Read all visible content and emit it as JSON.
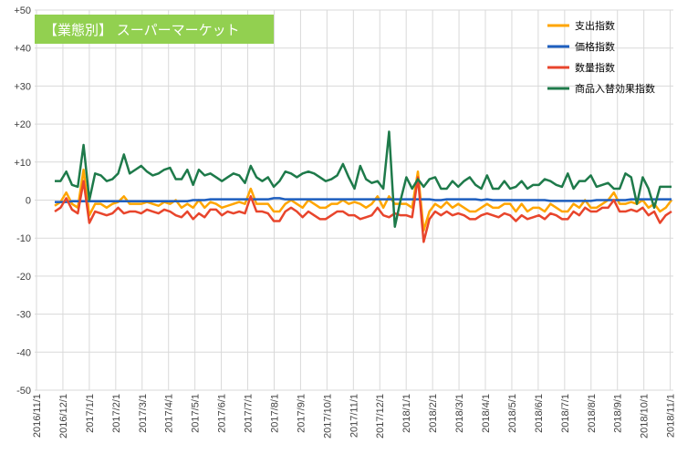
{
  "chart_data": {
    "type": "line",
    "title": "【業態別】 スーパーマーケット",
    "title_bg_color": "#92d050",
    "ylim": [
      -50,
      50
    ],
    "y_ticks": [
      50,
      40,
      30,
      20,
      10,
      0,
      -10,
      -20,
      -30,
      -40,
      -50
    ],
    "y_tick_labels": [
      "+50",
      "+40",
      "+30",
      "+20",
      "+10",
      "0",
      "-10",
      "-20",
      "-30",
      "-40",
      "-50"
    ],
    "grid": true,
    "legend_position": "top-right",
    "x_tick_labels": [
      "2016/11/1",
      "2016/12/1",
      "2017/1/1",
      "2017/2/1",
      "2017/3/1",
      "2017/4/1",
      "2017/5/1",
      "2017/6/1",
      "2017/7/1",
      "2017/8/1",
      "2017/9/1",
      "2017/10/1",
      "2017/11/1",
      "2017/12/1",
      "2018/1/1",
      "2018/2/1",
      "2018/3/1",
      "2018/4/1",
      "2018/5/1",
      "2018/6/1",
      "2018/7/1",
      "2018/8/1",
      "2018/9/1",
      "2018/10/1",
      "2018/11/1"
    ],
    "x_count": 108,
    "series": [
      {
        "name": "支出指数",
        "color": "#ffa500",
        "values": [
          -1.5,
          -0.5,
          2,
          -1,
          -2,
          8,
          -4,
          -1,
          -1,
          -2,
          -1,
          -0.5,
          1,
          -1,
          -1,
          -1,
          -0.5,
          -1,
          -1.5,
          -0.5,
          -1,
          0,
          -2,
          -1,
          -2,
          0,
          -2,
          -0.5,
          -1,
          -2,
          -1.5,
          -1,
          -0.5,
          -1,
          3,
          -1,
          -1,
          -1,
          -3,
          -3,
          -1,
          0,
          -1,
          -2,
          0,
          -1,
          -2,
          -2,
          -1,
          -1,
          0,
          -1,
          -0.5,
          -1,
          -2,
          -1,
          1,
          -2,
          1,
          -1,
          -1,
          -1,
          -2,
          7.5,
          -8,
          -3,
          -1,
          -2,
          -0.5,
          -2,
          -1,
          -2,
          -3,
          -3,
          -2,
          -1,
          -2,
          -2,
          -1,
          -1,
          -3,
          -1,
          -3,
          -2,
          -2,
          -3,
          -1,
          -2,
          -3,
          -3,
          -1,
          -2,
          0,
          -2,
          -2,
          -1,
          0,
          2,
          -1,
          -1,
          -0.5,
          -1,
          0,
          -2,
          -1,
          -3,
          -2,
          0
        ]
      },
      {
        "name": "価格指数",
        "color": "#1f5fbf",
        "values": [
          -0.5,
          -0.5,
          -0.5,
          -0.3,
          -0.3,
          -0.3,
          -0.3,
          -0.3,
          -0.3,
          -0.3,
          -0.3,
          -0.3,
          -0.3,
          -0.3,
          -0.3,
          -0.3,
          -0.3,
          -0.3,
          -0.3,
          -0.3,
          -0.3,
          -0.3,
          -0.3,
          -0.3,
          0,
          0,
          0,
          0.2,
          0.2,
          0.2,
          0.2,
          0.2,
          0.2,
          0.2,
          0.2,
          0.2,
          0.2,
          0.2,
          0.5,
          0.5,
          0.2,
          0.2,
          0.2,
          0.2,
          0.2,
          0.2,
          0.2,
          0.2,
          0.2,
          0.2,
          0.2,
          0.2,
          0.2,
          0.2,
          0.2,
          0.2,
          0.2,
          0.2,
          0.2,
          0.2,
          0.2,
          0.2,
          0.2,
          0.2,
          0.2,
          0.2,
          0,
          0,
          0.2,
          0.2,
          0.2,
          0.2,
          0.2,
          0.2,
          0,
          0.2,
          0,
          0,
          0,
          0,
          0,
          0,
          0,
          0,
          0,
          0,
          -0.2,
          -0.2,
          -0.2,
          -0.2,
          -0.2,
          -0.2,
          -0.2,
          -0.2,
          0,
          0,
          0,
          0,
          0,
          0,
          0.2,
          0.2,
          0.2,
          0.2,
          0.2,
          0.2,
          0.2,
          0.2
        ]
      },
      {
        "name": "数量指数",
        "color": "#e8452c",
        "values": [
          -3,
          -2,
          0.5,
          -2.5,
          -3.5,
          5,
          -6,
          -3,
          -3.5,
          -4,
          -3.5,
          -2,
          -3.5,
          -3,
          -3,
          -3.5,
          -2.5,
          -3,
          -3.5,
          -2.5,
          -3,
          -4,
          -4.5,
          -3,
          -5,
          -3.5,
          -4.5,
          -2.5,
          -2.5,
          -4,
          -3,
          -3.5,
          -3,
          -3.5,
          1,
          -3,
          -3,
          -3.5,
          -5.5,
          -5.5,
          -3,
          -2,
          -3,
          -4.5,
          -3,
          -4,
          -5,
          -5,
          -4,
          -3,
          -3,
          -4,
          -4,
          -5,
          -4.5,
          -4,
          -2,
          -4,
          -4.5,
          -3.5,
          -4,
          -4,
          -4.5,
          6,
          -11,
          -5,
          -3,
          -4,
          -3,
          -4,
          -3.5,
          -4,
          -5,
          -5,
          -4,
          -3.5,
          -4,
          -4.5,
          -3.5,
          -4,
          -5.5,
          -4,
          -5,
          -4.5,
          -4,
          -5,
          -3.5,
          -4,
          -5,
          -5,
          -3,
          -4,
          -2,
          -3,
          -3,
          -2,
          -2,
          0,
          -3,
          -3,
          -2.5,
          -3,
          -2,
          -4,
          -3,
          -6,
          -4,
          -3
        ]
      },
      {
        "name": "商品入替効果指数",
        "color": "#1e7a4a",
        "values": [
          5,
          5,
          7.5,
          4,
          3.5,
          14.5,
          0,
          7,
          6.5,
          5,
          5.5,
          7,
          12,
          7,
          8,
          9,
          7.5,
          6.5,
          7,
          8,
          8.5,
          5.5,
          5.5,
          8,
          4,
          8,
          6.5,
          7,
          6,
          5,
          6,
          7,
          6.5,
          4.5,
          9,
          6,
          5,
          6,
          3.5,
          5,
          7.5,
          7,
          6,
          7,
          7.5,
          7,
          6,
          5,
          5.5,
          6.5,
          9.5,
          6,
          3,
          9,
          5.5,
          4.5,
          5,
          3,
          18,
          -7,
          0,
          6,
          3,
          5.5,
          3.5,
          5.5,
          6,
          3,
          3,
          5,
          3.5,
          5,
          6,
          4,
          3,
          6.5,
          3,
          3,
          5,
          3,
          3.5,
          5,
          3,
          4,
          4,
          5.5,
          5,
          4,
          3.5,
          7,
          3,
          5,
          5,
          6.5,
          3.5,
          4,
          4.5,
          3,
          3,
          7,
          6,
          -1,
          6,
          3,
          -2,
          3.5,
          3.5,
          3.5
        ]
      }
    ]
  }
}
